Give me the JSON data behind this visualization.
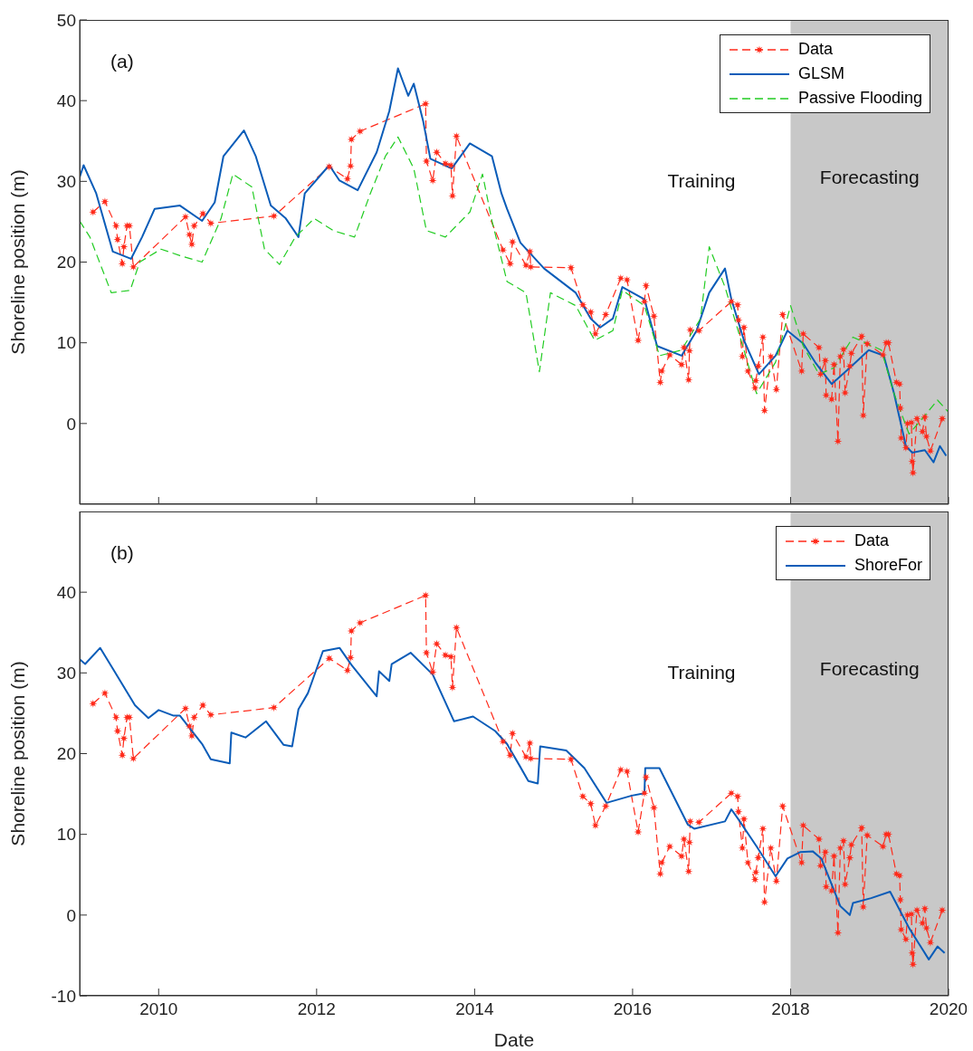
{
  "chart_data": [
    {
      "type": "line",
      "ylabel": "Shoreline position (m)",
      "xlim": [
        2009,
        2020
      ],
      "xticks": [
        2010,
        2012,
        2014,
        2016,
        2018,
        2020
      ],
      "ylim": [
        -10,
        50
      ],
      "yticks": [
        0,
        10,
        20,
        30,
        40,
        50
      ],
      "tick_labels": "y",
      "legend": "top right",
      "annotations": [
        "(a)",
        "Training"
      ],
      "bands": [
        {
          "axis": "x",
          "from": 2018,
          "to": 2020,
          "label": "Forecasting",
          "color": "#c8c8c8"
        }
      ],
      "series": [
        {
          "name": "Data",
          "color": "#ff2a1a",
          "line_style": "dashed",
          "marker": "star",
          "x": [
            2009.17,
            2009.32,
            2009.46,
            2009.48,
            2009.54,
            2009.56,
            2009.6,
            2009.63,
            2009.68,
            2010.34,
            2010.39,
            2010.42,
            2010.45,
            2010.56,
            2010.66,
            2011.46,
            2012.16,
            2012.39,
            2012.43,
            2012.44,
            2012.55,
            2013.38,
            2013.39,
            2013.47,
            2013.52,
            2013.63,
            2013.7,
            2013.72,
            2013.77,
            2014.36,
            2014.45,
            2014.48,
            2014.65,
            2014.7,
            2014.71,
            2015.22,
            2015.37,
            2015.47,
            2015.53,
            2015.66,
            2015.85,
            2015.93,
            2016.07,
            2016.15,
            2016.17,
            2016.27,
            2016.35,
            2016.37,
            2016.47,
            2016.62,
            2016.65,
            2016.71,
            2016.72,
            2016.73,
            2016.84,
            2017.25,
            2017.33,
            2017.34,
            2017.39,
            2017.41,
            2017.46,
            2017.55,
            2017.56,
            2017.59,
            2017.65,
            2017.67,
            2017.75,
            2017.82,
            2017.9,
            2018.14,
            2018.16,
            2018.36,
            2018.38,
            2018.44,
            2018.45,
            2018.52,
            2018.55,
            2018.6,
            2018.63,
            2018.67,
            2018.69,
            2018.75,
            2018.77,
            2018.9,
            2018.92,
            2018.97,
            2019.17,
            2019.21,
            2019.24,
            2019.34,
            2019.38,
            2019.39,
            2019.4,
            2019.46,
            2019.48,
            2019.53,
            2019.54,
            2019.55,
            2019.6,
            2019.67,
            2019.7,
            2019.72,
            2019.77,
            2019.92
          ],
          "values": [
            26.2,
            27.5,
            24.5,
            22.8,
            19.8,
            21.9,
            24.5,
            24.5,
            19.4,
            25.6,
            23.4,
            22.2,
            24.5,
            26.0,
            24.8,
            25.7,
            31.8,
            30.3,
            31.9,
            35.2,
            36.2,
            39.6,
            32.5,
            30.1,
            33.6,
            32.2,
            32.0,
            28.2,
            35.6,
            21.5,
            19.8,
            22.5,
            19.6,
            21.3,
            19.4,
            19.3,
            14.7,
            13.8,
            11.1,
            13.5,
            18.0,
            17.8,
            10.3,
            15.1,
            17.1,
            13.3,
            5.1,
            6.5,
            8.5,
            7.3,
            9.4,
            5.4,
            9.0,
            11.6,
            11.5,
            15.1,
            14.7,
            12.8,
            8.3,
            11.9,
            6.5,
            4.4,
            5.3,
            7.1,
            10.7,
            1.6,
            8.3,
            4.2,
            13.5,
            6.5,
            11.1,
            9.4,
            6.1,
            7.8,
            3.5,
            3.0,
            7.3,
            -2.2,
            8.3,
            9.2,
            3.8,
            7.1,
            8.7,
            10.8,
            1.0,
            9.9,
            8.5,
            10.0,
            10.0,
            5.1,
            4.9,
            1.9,
            -1.8,
            -3.0,
            0.0,
            0.1,
            -4.7,
            -6.1,
            0.6,
            -1.0,
            0.8,
            -1.6,
            -3.4,
            0.6
          ]
        },
        {
          "name": "GLSM",
          "color": "#0a5cb8",
          "line_style": "solid",
          "marker": "none",
          "x": [
            2009.0,
            2009.05,
            2009.21,
            2009.42,
            2009.65,
            2009.79,
            2009.95,
            2010.27,
            2010.55,
            2010.71,
            2010.82,
            2011.08,
            2011.23,
            2011.42,
            2011.61,
            2011.77,
            2011.85,
            2012.16,
            2012.29,
            2012.52,
            2012.76,
            2012.92,
            2013.03,
            2013.16,
            2013.23,
            2013.35,
            2013.44,
            2013.71,
            2013.94,
            2014.22,
            2014.34,
            2014.41,
            2014.58,
            2014.88,
            2015.28,
            2015.47,
            2015.59,
            2015.75,
            2015.87,
            2016.15,
            2016.31,
            2016.62,
            2016.81,
            2016.97,
            2017.17,
            2017.25,
            2017.41,
            2017.6,
            2017.81,
            2017.96,
            2018.16,
            2018.31,
            2018.52,
            2018.75,
            2018.99,
            2019.18,
            2019.31,
            2019.46,
            2019.54,
            2019.7,
            2019.81,
            2019.89,
            2019.97
          ],
          "values": [
            30.5,
            32.0,
            28.5,
            21.3,
            20.4,
            23.1,
            26.6,
            27.0,
            25.1,
            27.4,
            33.1,
            36.3,
            33.1,
            27.0,
            25.4,
            23.1,
            28.5,
            32.0,
            30.1,
            28.9,
            33.6,
            38.7,
            44.0,
            40.6,
            42.1,
            37.4,
            32.8,
            31.6,
            34.7,
            33.1,
            28.5,
            26.6,
            22.4,
            19.2,
            16.2,
            13.0,
            11.9,
            13.0,
            16.9,
            15.4,
            9.6,
            8.4,
            11.5,
            16.2,
            19.2,
            15.4,
            10.3,
            6.1,
            8.4,
            11.5,
            9.9,
            7.6,
            4.9,
            6.9,
            9.1,
            8.4,
            3.7,
            -2.8,
            -3.6,
            -3.3,
            -4.8,
            -2.8,
            -4.0
          ]
        },
        {
          "name": "Passive Flooding",
          "color": "#22cc22",
          "line_style": "dashed",
          "marker": "none",
          "x": [
            2009.0,
            2009.13,
            2009.4,
            2009.64,
            2009.76,
            2010.03,
            2010.27,
            2010.55,
            2010.79,
            2010.94,
            2011.18,
            2011.34,
            2011.53,
            2011.73,
            2011.97,
            2012.21,
            2012.48,
            2012.68,
            2012.87,
            2013.03,
            2013.23,
            2013.39,
            2013.63,
            2013.94,
            2014.1,
            2014.22,
            2014.37,
            2014.41,
            2014.65,
            2014.82,
            2014.96,
            2015.28,
            2015.52,
            2015.75,
            2015.87,
            2016.15,
            2016.34,
            2016.62,
            2016.86,
            2016.97,
            2017.17,
            2017.41,
            2017.57,
            2017.81,
            2018.0,
            2018.16,
            2018.36,
            2018.55,
            2018.79,
            2019.15,
            2019.31,
            2019.5,
            2019.7,
            2019.86,
            2019.99
          ],
          "values": [
            25.1,
            23.1,
            16.2,
            16.5,
            20.0,
            21.6,
            20.8,
            20.0,
            25.4,
            30.9,
            29.3,
            21.6,
            19.7,
            23.1,
            25.4,
            23.9,
            23.1,
            28.5,
            33.1,
            35.5,
            31.6,
            23.9,
            23.1,
            26.2,
            30.9,
            25.1,
            19.2,
            17.6,
            16.2,
            6.4,
            16.2,
            14.6,
            10.3,
            11.5,
            16.5,
            14.6,
            8.4,
            9.1,
            13.0,
            21.9,
            16.9,
            9.1,
            3.7,
            7.6,
            14.6,
            9.6,
            6.1,
            6.9,
            10.7,
            9.1,
            3.7,
            -1.3,
            1.0,
            2.9,
            1.5
          ]
        }
      ]
    },
    {
      "type": "line",
      "xlabel": "Date",
      "ylabel": "Shoreline position (m)",
      "xlim": [
        2009,
        2020
      ],
      "xticks": [
        2010,
        2012,
        2014,
        2016,
        2018,
        2020
      ],
      "ylim": [
        -10,
        50
      ],
      "yticks": [
        -10,
        0,
        10,
        20,
        30,
        40
      ],
      "legend": "top right",
      "annotations": [
        "(b)",
        "Training"
      ],
      "bands": [
        {
          "axis": "x",
          "from": 2018,
          "to": 2020,
          "label": "Forecasting",
          "color": "#c8c8c8"
        }
      ],
      "series": [
        {
          "name": "Data",
          "color": "#ff2a1a",
          "line_style": "dashed",
          "marker": "star",
          "x": [
            2009.17,
            2009.32,
            2009.46,
            2009.48,
            2009.54,
            2009.56,
            2009.6,
            2009.63,
            2009.68,
            2010.34,
            2010.39,
            2010.42,
            2010.45,
            2010.56,
            2010.66,
            2011.46,
            2012.16,
            2012.39,
            2012.43,
            2012.44,
            2012.55,
            2013.38,
            2013.39,
            2013.47,
            2013.52,
            2013.63,
            2013.7,
            2013.72,
            2013.77,
            2014.36,
            2014.45,
            2014.48,
            2014.65,
            2014.7,
            2014.71,
            2015.22,
            2015.37,
            2015.47,
            2015.53,
            2015.66,
            2015.85,
            2015.93,
            2016.07,
            2016.15,
            2016.17,
            2016.27,
            2016.35,
            2016.37,
            2016.47,
            2016.62,
            2016.65,
            2016.71,
            2016.72,
            2016.73,
            2016.84,
            2017.25,
            2017.33,
            2017.34,
            2017.39,
            2017.41,
            2017.46,
            2017.55,
            2017.56,
            2017.59,
            2017.65,
            2017.67,
            2017.75,
            2017.82,
            2017.9,
            2018.14,
            2018.16,
            2018.36,
            2018.38,
            2018.44,
            2018.45,
            2018.52,
            2018.55,
            2018.6,
            2018.63,
            2018.67,
            2018.69,
            2018.75,
            2018.77,
            2018.9,
            2018.92,
            2018.97,
            2019.17,
            2019.21,
            2019.24,
            2019.34,
            2019.38,
            2019.39,
            2019.4,
            2019.46,
            2019.48,
            2019.53,
            2019.54,
            2019.55,
            2019.6,
            2019.67,
            2019.7,
            2019.72,
            2019.77,
            2019.92
          ],
          "values": [
            26.2,
            27.5,
            24.5,
            22.8,
            19.8,
            21.9,
            24.5,
            24.5,
            19.4,
            25.6,
            23.4,
            22.2,
            24.5,
            26.0,
            24.8,
            25.7,
            31.8,
            30.3,
            31.9,
            35.2,
            36.2,
            39.6,
            32.5,
            30.1,
            33.6,
            32.2,
            32.0,
            28.2,
            35.6,
            21.5,
            19.8,
            22.5,
            19.6,
            21.3,
            19.4,
            19.3,
            14.7,
            13.8,
            11.1,
            13.5,
            18.0,
            17.8,
            10.3,
            15.1,
            17.1,
            13.3,
            5.1,
            6.5,
            8.5,
            7.3,
            9.4,
            5.4,
            9.0,
            11.6,
            11.5,
            15.1,
            14.7,
            12.8,
            8.3,
            11.9,
            6.5,
            4.4,
            5.3,
            7.1,
            10.7,
            1.6,
            8.3,
            4.2,
            13.5,
            6.5,
            11.1,
            9.4,
            6.1,
            7.8,
            3.5,
            3.0,
            7.3,
            -2.2,
            8.3,
            9.2,
            3.8,
            7.1,
            8.7,
            10.8,
            1.0,
            9.9,
            8.5,
            10.0,
            10.0,
            5.1,
            4.9,
            1.9,
            -1.8,
            -3.0,
            0.0,
            0.1,
            -4.7,
            -6.1,
            0.6,
            -1.0,
            0.8,
            -1.6,
            -3.4,
            0.6
          ]
        },
        {
          "name": "ShoreFor",
          "color": "#0a5cb8",
          "line_style": "solid",
          "marker": "none",
          "x": [
            2009.0,
            2009.07,
            2009.26,
            2009.44,
            2009.7,
            2009.87,
            2010.0,
            2010.19,
            2010.27,
            2010.55,
            2010.66,
            2010.9,
            2010.92,
            2011.1,
            2011.36,
            2011.58,
            2011.69,
            2011.77,
            2011.89,
            2012.08,
            2012.29,
            2012.44,
            2012.76,
            2012.79,
            2012.92,
            2012.95,
            2013.19,
            2013.47,
            2013.74,
            2013.98,
            2014.26,
            2014.41,
            2014.57,
            2014.68,
            2014.8,
            2014.83,
            2015.16,
            2015.39,
            2015.67,
            2015.99,
            2016.15,
            2016.16,
            2016.34,
            2016.7,
            2016.78,
            2017.17,
            2017.25,
            2017.33,
            2017.57,
            2017.81,
            2017.96,
            2018.12,
            2018.28,
            2018.39,
            2018.63,
            2018.75,
            2018.79,
            2019.02,
            2019.26,
            2019.5,
            2019.75,
            2019.86,
            2019.95
          ],
          "values": [
            31.7,
            31.1,
            33.1,
            30.2,
            26.0,
            24.4,
            25.4,
            24.7,
            24.7,
            21.2,
            19.3,
            18.8,
            22.6,
            22.0,
            24.0,
            21.1,
            20.9,
            25.5,
            27.5,
            32.7,
            33.1,
            31.0,
            27.1,
            30.2,
            29.0,
            31.1,
            32.5,
            29.8,
            24.0,
            24.6,
            22.8,
            21.2,
            18.5,
            16.6,
            16.3,
            20.9,
            20.4,
            18.2,
            13.9,
            14.8,
            15.1,
            18.2,
            18.2,
            11.2,
            10.7,
            11.6,
            13.1,
            12.0,
            8.5,
            4.8,
            7.0,
            7.8,
            7.9,
            7.0,
            1.1,
            0.0,
            1.5,
            2.1,
            2.9,
            -1.6,
            -5.5,
            -3.9,
            -4.7
          ]
        }
      ]
    }
  ]
}
